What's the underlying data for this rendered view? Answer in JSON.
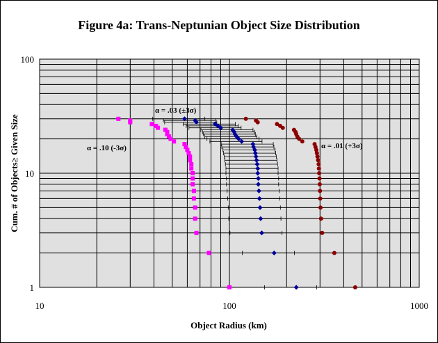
{
  "chart_data": {
    "type": "scatter",
    "title": "Figure 4a:  Trans-Neptunian Object Size Distribution",
    "xlabel": "Object Radius (km)",
    "ylabel": "Cum. # of Objects≥ Given Size",
    "x_scale": "log",
    "y_scale": "log",
    "xlim": [
      10,
      1000
    ],
    "ylim": [
      1,
      100
    ],
    "x_ticks": [
      "10",
      "100",
      "1000"
    ],
    "y_ticks": [
      "1",
      "10",
      "100"
    ],
    "grid": true,
    "legend": "none",
    "colors": {
      "plot_background": "#e0e0e0",
      "grid": "#000000",
      "alpha_10": "#ff00ff",
      "alpha_03": "#000099",
      "alpha_01": "#8b0000"
    },
    "annotations": [
      {
        "text": "α = .03 (±3σ)",
        "series": "alpha_03"
      },
      {
        "text": "α = .10 (-3σ)",
        "series": "alpha_10"
      },
      {
        "text": "α = .01 (+3σ)",
        "series": "alpha_01"
      }
    ],
    "series": [
      {
        "key": "alpha_10",
        "marker": "square",
        "color": "#ff00ff",
        "points": [
          [
            26,
            30
          ],
          [
            30,
            29
          ],
          [
            30,
            28
          ],
          [
            39,
            27
          ],
          [
            41,
            26
          ],
          [
            42,
            25
          ],
          [
            46,
            24
          ],
          [
            47,
            23
          ],
          [
            47,
            22
          ],
          [
            48,
            21
          ],
          [
            49,
            20
          ],
          [
            51,
            19
          ],
          [
            58,
            18
          ],
          [
            59,
            17
          ],
          [
            60,
            16
          ],
          [
            61,
            15
          ],
          [
            62,
            14
          ],
          [
            62,
            13
          ],
          [
            63,
            12
          ],
          [
            63,
            11
          ],
          [
            64,
            10
          ],
          [
            64,
            9
          ],
          [
            64,
            8
          ],
          [
            65,
            7
          ],
          [
            65,
            6
          ],
          [
            66,
            5
          ],
          [
            66,
            4
          ],
          [
            67,
            3
          ],
          [
            78,
            2
          ],
          [
            100,
            1
          ]
        ]
      },
      {
        "key": "alpha_03",
        "marker": "diamond",
        "color": "#000099",
        "points": [
          [
            58,
            30
          ],
          [
            66,
            29
          ],
          [
            67,
            28
          ],
          [
            84,
            27
          ],
          [
            87,
            26
          ],
          [
            90,
            25
          ],
          [
            104,
            24
          ],
          [
            106,
            23
          ],
          [
            107,
            22
          ],
          [
            109,
            21
          ],
          [
            112,
            20
          ],
          [
            116,
            19
          ],
          [
            133,
            18
          ],
          [
            134,
            17
          ],
          [
            136,
            16
          ],
          [
            137,
            15
          ],
          [
            138,
            14
          ],
          [
            139,
            13
          ],
          [
            140,
            12
          ],
          [
            141,
            11
          ],
          [
            141,
            10
          ],
          [
            142,
            9
          ],
          [
            142,
            8
          ],
          [
            143,
            7
          ],
          [
            144,
            6
          ],
          [
            145,
            5
          ],
          [
            146,
            4
          ],
          [
            148,
            3
          ],
          [
            172,
            2
          ],
          [
            225,
            1
          ]
        ]
      },
      {
        "key": "alpha_01",
        "marker": "circle",
        "color": "#8b0000",
        "points": [
          [
            122,
            30
          ],
          [
            138,
            29
          ],
          [
            141,
            28
          ],
          [
            178,
            27
          ],
          [
            185,
            26
          ],
          [
            191,
            25
          ],
          [
            219,
            24
          ],
          [
            223,
            23
          ],
          [
            225,
            22
          ],
          [
            228,
            21
          ],
          [
            233,
            20
          ],
          [
            242,
            19
          ],
          [
            281,
            18
          ],
          [
            284,
            17
          ],
          [
            287,
            16
          ],
          [
            289,
            15
          ],
          [
            291,
            14
          ],
          [
            293,
            13
          ],
          [
            295,
            12
          ],
          [
            296,
            11
          ],
          [
            297,
            10
          ],
          [
            298,
            9
          ],
          [
            299,
            8
          ],
          [
            300,
            7
          ],
          [
            301,
            6
          ],
          [
            302,
            5
          ],
          [
            304,
            4
          ],
          [
            308,
            3
          ],
          [
            357,
            2
          ],
          [
            460,
            1
          ]
        ]
      }
    ]
  }
}
